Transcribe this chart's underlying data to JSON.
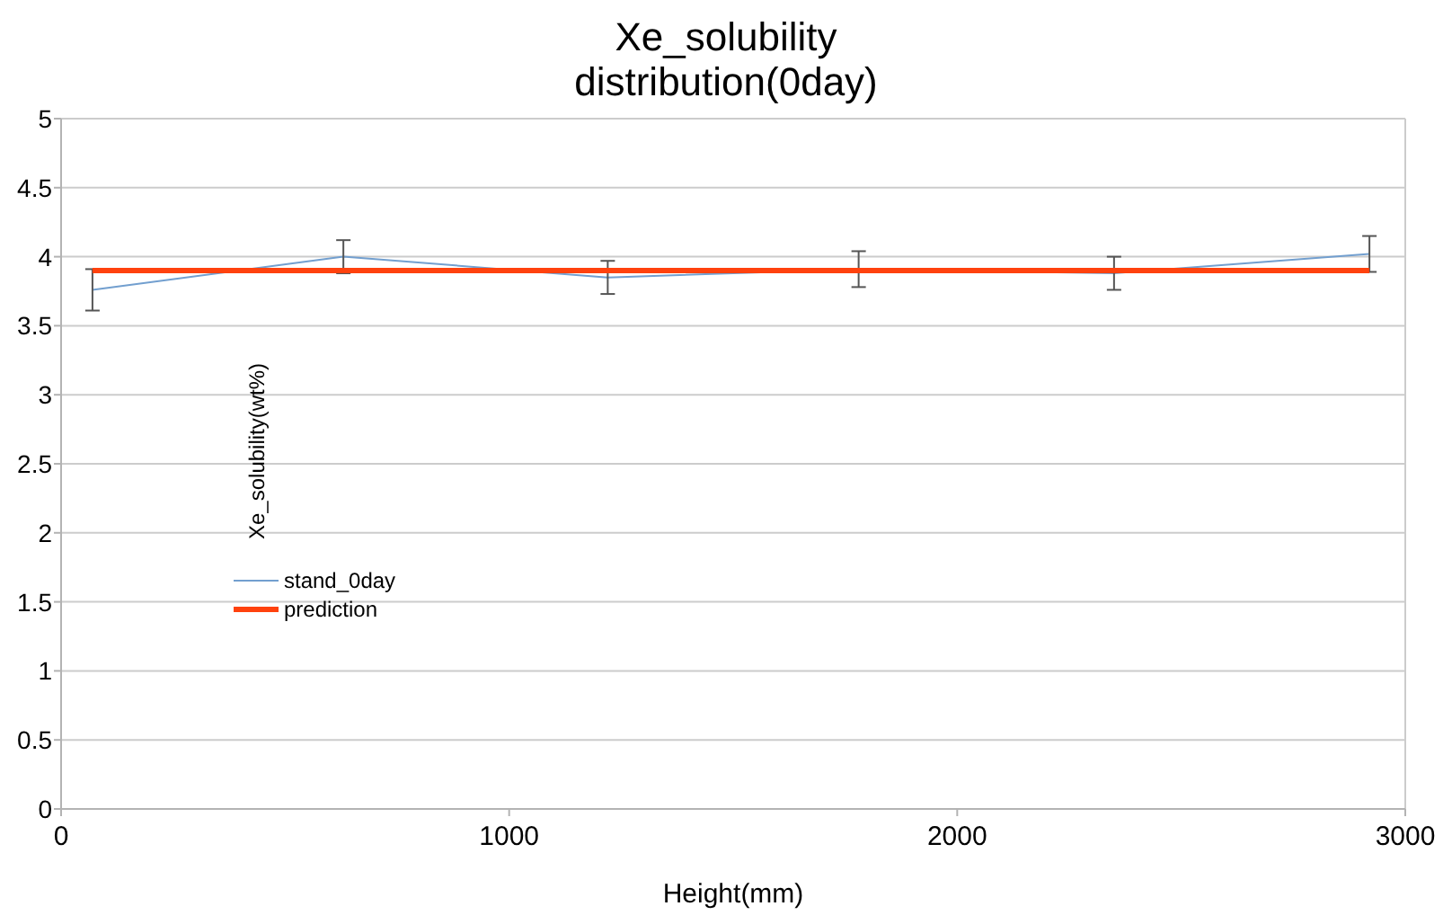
{
  "chart_data": {
    "type": "line",
    "title": "Xe_solubility\ndistribution(0day)",
    "xlabel": "Height(mm)",
    "ylabel": "Xe_solubility(wt%)",
    "xlim": [
      0,
      3000
    ],
    "xticks": [
      0,
      1000,
      2000,
      3000
    ],
    "ylim": [
      0,
      5
    ],
    "yticks": [
      0,
      0.5,
      1,
      1.5,
      2,
      2.5,
      3,
      3.5,
      4,
      4.5,
      5
    ],
    "grid": "y",
    "legend": "left",
    "marker": "none",
    "series": [
      {
        "name": "stand_0day",
        "color": "#729fcf",
        "x": [
          70,
          630,
          1220,
          1780,
          2350,
          2920
        ],
        "values": [
          3.76,
          4.0,
          3.85,
          3.91,
          3.88,
          4.02
        ],
        "errors": [
          0.15,
          0.12,
          0.12,
          0.13,
          0.12,
          0.13
        ]
      },
      {
        "name": "prediction",
        "color": "#ff420e",
        "x": [
          70,
          2920
        ],
        "values": [
          3.9,
          3.9
        ]
      }
    ]
  }
}
